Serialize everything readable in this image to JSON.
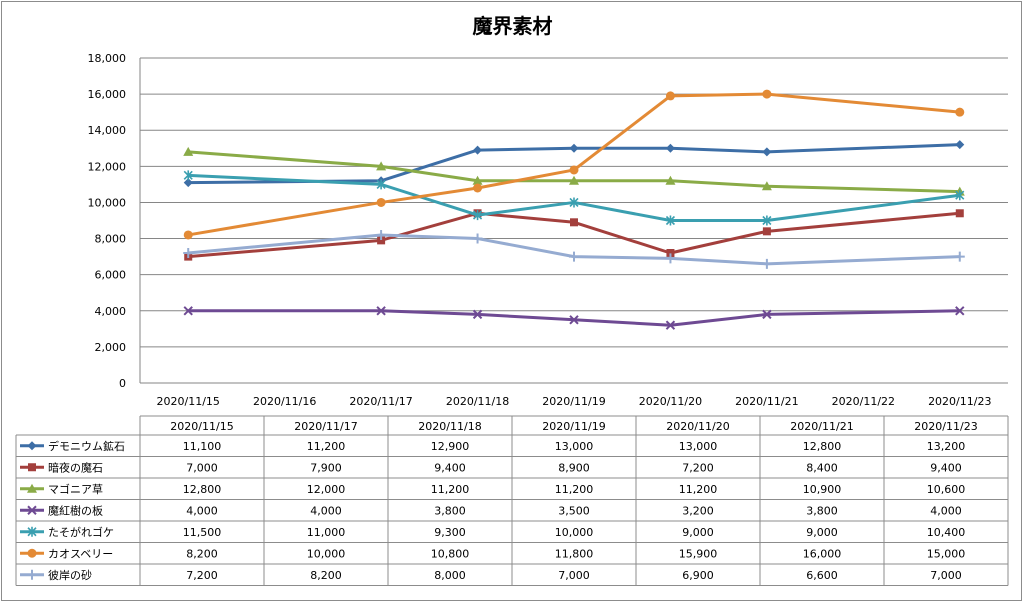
{
  "chart_data": {
    "type": "line",
    "title": "魔界素材",
    "axis_x_labels": [
      "2020/11/15",
      "2020/11/16",
      "2020/11/17",
      "2020/11/18",
      "2020/11/19",
      "2020/11/20",
      "2020/11/21",
      "2020/11/22",
      "2020/11/23"
    ],
    "x": [
      "2020/11/15",
      "2020/11/17",
      "2020/11/18",
      "2020/11/19",
      "2020/11/20",
      "2020/11/21",
      "2020/11/23"
    ],
    "ylim": [
      0,
      18000
    ],
    "y_ticks": [
      "0",
      "2,000",
      "4,000",
      "6,000",
      "8,000",
      "10,000",
      "12,000",
      "14,000",
      "16,000",
      "18,000"
    ],
    "y_tick_values": [
      0,
      2000,
      4000,
      6000,
      8000,
      10000,
      12000,
      14000,
      16000,
      18000
    ],
    "grid": true,
    "legend": "data-table",
    "series": [
      {
        "name": "デモニウム鉱石",
        "color": "#3d6ea6",
        "marker": "diamond",
        "values": [
          11100,
          11200,
          12900,
          13000,
          13000,
          12800,
          13200
        ],
        "labels": [
          "11,100",
          "11,200",
          "12,900",
          "13,000",
          "13,000",
          "12,800",
          "13,200"
        ]
      },
      {
        "name": "暗夜の魔石",
        "color": "#a33f3c",
        "marker": "square",
        "values": [
          7000,
          7900,
          9400,
          8900,
          7200,
          8400,
          9400
        ],
        "labels": [
          "7,000",
          "7,900",
          "9,400",
          "8,900",
          "7,200",
          "8,400",
          "9,400"
        ]
      },
      {
        "name": "マゴニア草",
        "color": "#8aab47",
        "marker": "triangle",
        "values": [
          12800,
          12000,
          11200,
          11200,
          11200,
          10900,
          10600
        ],
        "labels": [
          "12,800",
          "12,000",
          "11,200",
          "11,200",
          "11,200",
          "10,900",
          "10,600"
        ]
      },
      {
        "name": "魔紅樹の板",
        "color": "#6e4a93",
        "marker": "x",
        "values": [
          4000,
          4000,
          3800,
          3500,
          3200,
          3800,
          4000
        ],
        "labels": [
          "4,000",
          "4,000",
          "3,800",
          "3,500",
          "3,200",
          "3,800",
          "4,000"
        ]
      },
      {
        "name": "たそがれゴケ",
        "color": "#3a9fb0",
        "marker": "star",
        "values": [
          11500,
          11000,
          9300,
          10000,
          9000,
          9000,
          10400
        ],
        "labels": [
          "11,500",
          "11,000",
          "9,300",
          "10,000",
          "9,000",
          "9,000",
          "10,400"
        ]
      },
      {
        "name": "カオスベリー",
        "color": "#e38a35",
        "marker": "circle",
        "values": [
          8200,
          10000,
          10800,
          11800,
          15900,
          16000,
          15000
        ],
        "labels": [
          "8,200",
          "10,000",
          "10,800",
          "11,800",
          "15,900",
          "16,000",
          "15,000"
        ]
      },
      {
        "name": "彼岸の砂",
        "color": "#95abd1",
        "marker": "plus",
        "values": [
          7200,
          8200,
          8000,
          7000,
          6900,
          6600,
          7000
        ],
        "labels": [
          "7,200",
          "8,200",
          "8,000",
          "7,000",
          "6,900",
          "6,600",
          "7,000"
        ]
      }
    ]
  }
}
